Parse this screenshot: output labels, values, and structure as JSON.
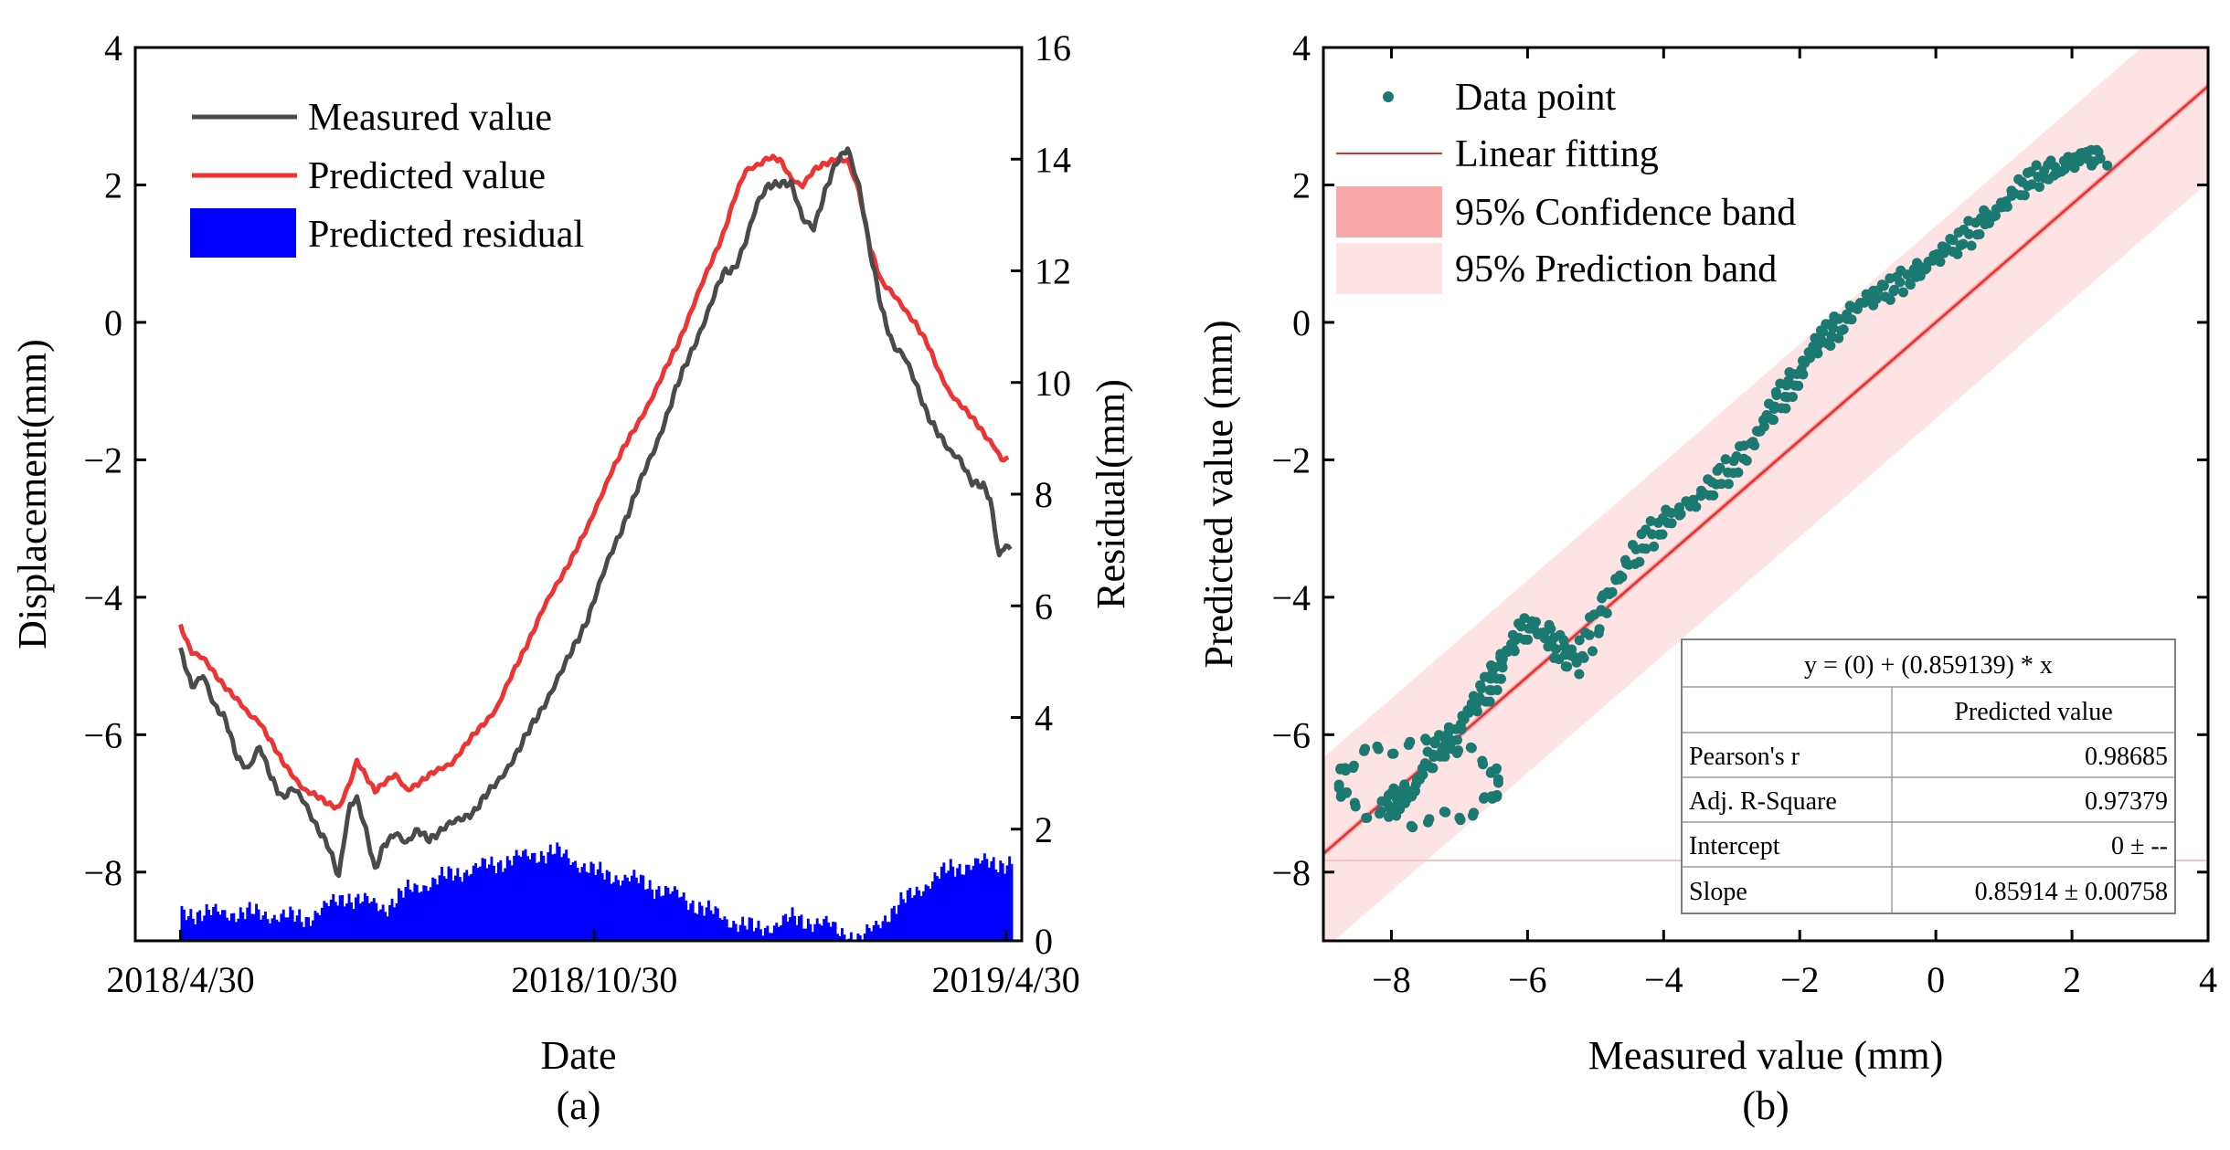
{
  "figure": {
    "panel_a_caption": "(a)",
    "panel_b_caption": "(b)"
  },
  "colors": {
    "measured": "#4a4a4a",
    "predicted": "#ee3333",
    "residual": "#0000ff",
    "points": "#1a7a72",
    "fit": "#e53030",
    "confidence": "#f8a8a8",
    "prediction": "#fde3e3"
  },
  "chart_data": [
    {
      "type": "line",
      "panel": "a",
      "xlabel": "Date",
      "ylabel": "Displacement(mm)",
      "y2label": "Residual(mm)",
      "x_ticks": [
        "2018/4/30",
        "2018/10/30",
        "2019/4/30"
      ],
      "x_range_days": [
        -20,
        372
      ],
      "ylim": [
        -9,
        4
      ],
      "y_ticks": [
        -8,
        -6,
        -4,
        -2,
        0,
        2,
        4
      ],
      "y2lim": [
        0,
        16
      ],
      "y2_ticks": [
        0,
        2,
        4,
        6,
        8,
        10,
        12,
        14,
        16
      ],
      "legend": [
        "Measured value",
        "Predicted value",
        "Predicted residual"
      ],
      "measured_keypoints": [
        [
          0,
          -4.8
        ],
        [
          5,
          -5.3
        ],
        [
          10,
          -5.1
        ],
        [
          15,
          -5.6
        ],
        [
          20,
          -5.8
        ],
        [
          25,
          -6.3
        ],
        [
          30,
          -6.5
        ],
        [
          35,
          -6.2
        ],
        [
          40,
          -6.6
        ],
        [
          45,
          -6.9
        ],
        [
          50,
          -6.8
        ],
        [
          55,
          -7.0
        ],
        [
          60,
          -7.3
        ],
        [
          65,
          -7.6
        ],
        [
          70,
          -8.1
        ],
        [
          72,
          -7.6
        ],
        [
          75,
          -7.0
        ],
        [
          78,
          -6.9
        ],
        [
          82,
          -7.4
        ],
        [
          86,
          -8.0
        ],
        [
          90,
          -7.6
        ],
        [
          95,
          -7.4
        ],
        [
          100,
          -7.6
        ],
        [
          105,
          -7.4
        ],
        [
          110,
          -7.5
        ],
        [
          120,
          -7.3
        ],
        [
          130,
          -7.1
        ],
        [
          140,
          -6.7
        ],
        [
          150,
          -6.2
        ],
        [
          160,
          -5.6
        ],
        [
          170,
          -5.0
        ],
        [
          180,
          -4.3
        ],
        [
          190,
          -3.4
        ],
        [
          200,
          -2.6
        ],
        [
          210,
          -1.8
        ],
        [
          220,
          -0.9
        ],
        [
          230,
          -0.1
        ],
        [
          240,
          0.7
        ],
        [
          245,
          0.8
        ],
        [
          250,
          1.2
        ],
        [
          255,
          1.7
        ],
        [
          260,
          2.0
        ],
        [
          265,
          2.05
        ],
        [
          270,
          2.0
        ],
        [
          275,
          1.5
        ],
        [
          280,
          1.4
        ],
        [
          285,
          1.9
        ],
        [
          290,
          2.3
        ],
        [
          295,
          2.55
        ],
        [
          300,
          2.0
        ],
        [
          305,
          1.0
        ],
        [
          310,
          0.2
        ],
        [
          315,
          -0.3
        ],
        [
          320,
          -0.5
        ],
        [
          325,
          -0.9
        ],
        [
          330,
          -1.3
        ],
        [
          335,
          -1.6
        ],
        [
          340,
          -1.9
        ],
        [
          345,
          -2.0
        ],
        [
          350,
          -2.3
        ],
        [
          355,
          -2.4
        ],
        [
          358,
          -2.6
        ],
        [
          362,
          -3.4
        ],
        [
          365,
          -3.2
        ],
        [
          367,
          -3.3
        ]
      ],
      "predicted_keypoints": [
        [
          0,
          -4.4
        ],
        [
          5,
          -4.8
        ],
        [
          10,
          -4.9
        ],
        [
          15,
          -5.1
        ],
        [
          20,
          -5.3
        ],
        [
          25,
          -5.5
        ],
        [
          30,
          -5.7
        ],
        [
          35,
          -5.8
        ],
        [
          40,
          -6.1
        ],
        [
          45,
          -6.4
        ],
        [
          50,
          -6.6
        ],
        [
          55,
          -6.8
        ],
        [
          60,
          -6.9
        ],
        [
          65,
          -7.0
        ],
        [
          70,
          -7.05
        ],
        [
          75,
          -6.7
        ],
        [
          78,
          -6.4
        ],
        [
          82,
          -6.6
        ],
        [
          86,
          -6.8
        ],
        [
          90,
          -6.7
        ],
        [
          95,
          -6.6
        ],
        [
          100,
          -6.8
        ],
        [
          105,
          -6.7
        ],
        [
          110,
          -6.6
        ],
        [
          120,
          -6.4
        ],
        [
          130,
          -6.0
        ],
        [
          140,
          -5.6
        ],
        [
          150,
          -4.9
        ],
        [
          160,
          -4.2
        ],
        [
          170,
          -3.6
        ],
        [
          180,
          -3.0
        ],
        [
          190,
          -2.2
        ],
        [
          200,
          -1.6
        ],
        [
          210,
          -1.0
        ],
        [
          220,
          -0.3
        ],
        [
          230,
          0.5
        ],
        [
          240,
          1.3
        ],
        [
          245,
          1.8
        ],
        [
          250,
          2.2
        ],
        [
          255,
          2.3
        ],
        [
          260,
          2.4
        ],
        [
          265,
          2.35
        ],
        [
          270,
          2.1
        ],
        [
          275,
          2.0
        ],
        [
          280,
          2.2
        ],
        [
          285,
          2.3
        ],
        [
          290,
          2.4
        ],
        [
          295,
          2.35
        ],
        [
          300,
          1.9
        ],
        [
          305,
          1.1
        ],
        [
          310,
          0.6
        ],
        [
          315,
          0.4
        ],
        [
          320,
          0.2
        ],
        [
          325,
          0.0
        ],
        [
          330,
          -0.3
        ],
        [
          335,
          -0.7
        ],
        [
          340,
          -1.0
        ],
        [
          345,
          -1.2
        ],
        [
          350,
          -1.4
        ],
        [
          355,
          -1.6
        ],
        [
          360,
          -1.8
        ],
        [
          363,
          -2.0
        ],
        [
          366,
          -2.0
        ]
      ],
      "residual_envelope": [
        [
          0,
          0.5
        ],
        [
          30,
          0.5
        ],
        [
          55,
          0.4
        ],
        [
          68,
          0.7
        ],
        [
          72,
          0.8
        ],
        [
          90,
          0.6
        ],
        [
          100,
          0.9
        ],
        [
          120,
          1.2
        ],
        [
          150,
          1.5
        ],
        [
          165,
          1.6
        ],
        [
          185,
          1.2
        ],
        [
          200,
          1.1
        ],
        [
          220,
          0.8
        ],
        [
          240,
          0.4
        ],
        [
          255,
          0.2
        ],
        [
          270,
          0.4
        ],
        [
          285,
          0.3
        ],
        [
          300,
          0.0
        ],
        [
          310,
          0.4
        ],
        [
          325,
          0.9
        ],
        [
          340,
          1.3
        ],
        [
          355,
          1.4
        ],
        [
          367,
          1.4
        ]
      ]
    },
    {
      "type": "scatter",
      "panel": "b",
      "xlabel": "Measured value (mm)",
      "ylabel": "Predicted value (mm)",
      "xlim": [
        -9,
        4
      ],
      "ylim": [
        -9,
        4
      ],
      "x_ticks": [
        -8,
        -6,
        -4,
        -2,
        0,
        2,
        4
      ],
      "y_ticks": [
        -8,
        -6,
        -4,
        -2,
        0,
        2,
        4
      ],
      "legend": [
        "Data point",
        "Linear fitting",
        "95% Confidence band",
        "95% Prediction band"
      ],
      "fit": {
        "intercept": 0,
        "slope": 0.859139,
        "prediction_halfwidth": 1.4
      },
      "points_path": [
        [
          -8.1,
          -7.1
        ],
        [
          -7.9,
          -6.9
        ],
        [
          -7.7,
          -6.8
        ],
        [
          -7.5,
          -6.5
        ],
        [
          -7.3,
          -6.2
        ],
        [
          -7.1,
          -6.0
        ],
        [
          -6.9,
          -5.7
        ],
        [
          -6.7,
          -5.5
        ],
        [
          -6.5,
          -5.2
        ],
        [
          -6.4,
          -4.9
        ],
        [
          -6.2,
          -4.7
        ],
        [
          -6.0,
          -4.4
        ],
        [
          -5.7,
          -4.5
        ],
        [
          -5.5,
          -4.8
        ],
        [
          -5.3,
          -5.0
        ],
        [
          -5.0,
          -4.4
        ],
        [
          -4.8,
          -3.9
        ],
        [
          -4.5,
          -3.5
        ],
        [
          -4.2,
          -3.1
        ],
        [
          -3.9,
          -2.8
        ],
        [
          -3.5,
          -2.6
        ],
        [
          -3.2,
          -2.3
        ],
        [
          -2.9,
          -2.0
        ],
        [
          -2.6,
          -1.6
        ],
        [
          -2.4,
          -1.3
        ],
        [
          -2.2,
          -1.0
        ],
        [
          -2.0,
          -0.7
        ],
        [
          -1.8,
          -0.4
        ],
        [
          -1.6,
          -0.2
        ],
        [
          -1.4,
          0.0
        ],
        [
          -1.1,
          0.3
        ],
        [
          -0.8,
          0.4
        ],
        [
          -0.5,
          0.6
        ],
        [
          -0.2,
          0.8
        ],
        [
          0.1,
          1.0
        ],
        [
          0.4,
          1.2
        ],
        [
          0.7,
          1.5
        ],
        [
          1.0,
          1.7
        ],
        [
          1.3,
          2.0
        ],
        [
          1.6,
          2.2
        ],
        [
          1.9,
          2.3
        ],
        [
          2.2,
          2.4
        ],
        [
          2.5,
          2.4
        ]
      ],
      "table": {
        "equation": "y = (0) + (0.859139) * x",
        "column_header": "Predicted value",
        "rows": [
          {
            "label": "Pearson's r",
            "value": "0.98685"
          },
          {
            "label": "Adj. R-Square",
            "value": "0.97379"
          },
          {
            "label": "Intercept",
            "value": "0 ± --"
          },
          {
            "label": "Slope",
            "value": "0.85914 ± 0.00758"
          }
        ]
      }
    }
  ]
}
